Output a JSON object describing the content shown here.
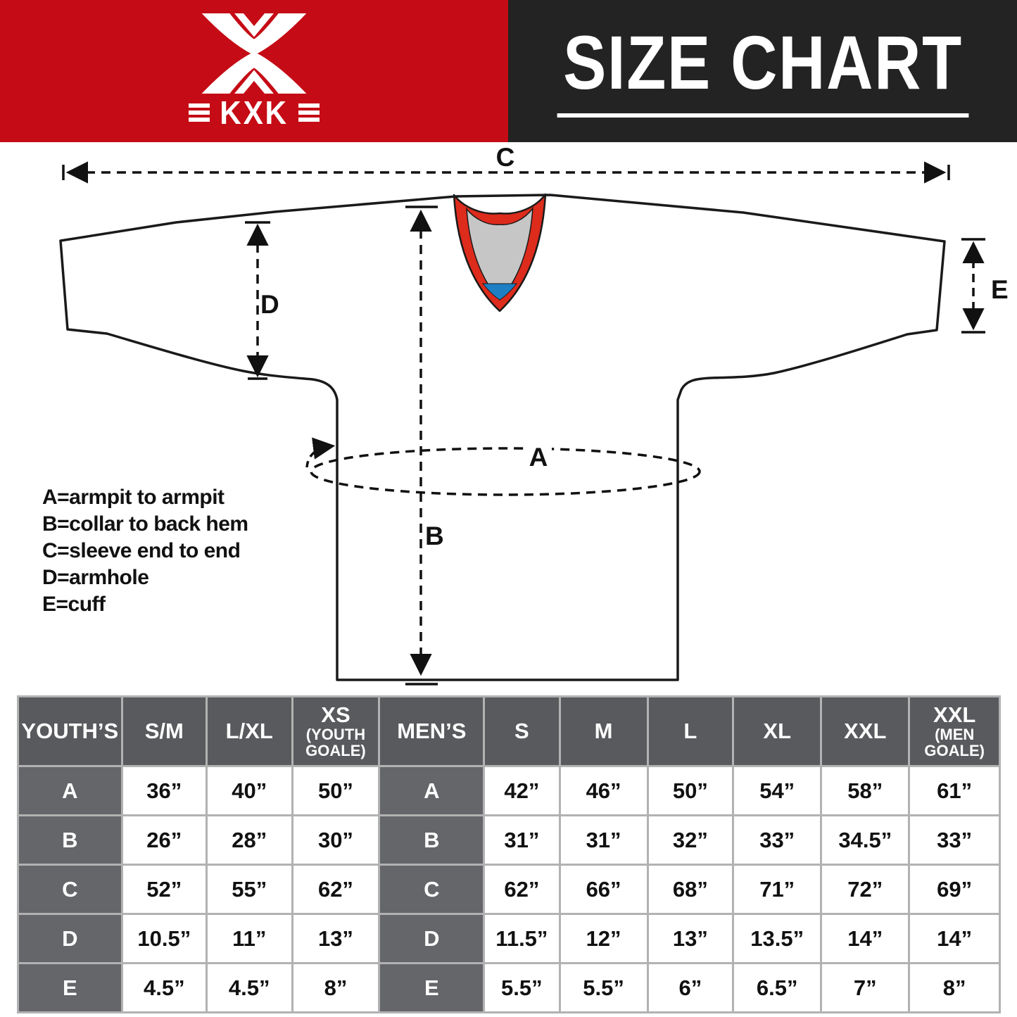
{
  "header": {
    "brand": "KXK",
    "title": "SIZE CHART"
  },
  "theme": {
    "brand_red": "#c50b15",
    "header_dark": "#232323",
    "collar_red": "#dd2b1c",
    "collar_gray": "#c6c6c6",
    "collar_blue": "#1e7fc2",
    "table_head": "#595a5d",
    "table_label": "#65666a",
    "grid_line": "#b2b2b2",
    "ink": "#111111"
  },
  "diagram": {
    "labels": {
      "a": "A",
      "b": "B",
      "c": "C",
      "d": "D",
      "e": "E"
    },
    "legend": [
      "A=armpit to armpit",
      "B=collar to back hem",
      "C=sleeve end to end",
      "D=armhole",
      "E=cuff"
    ]
  },
  "size_table": {
    "columns": [
      {
        "label": "YOUTH’S",
        "kind": "group"
      },
      {
        "label": "S/M"
      },
      {
        "label": "L/XL"
      },
      {
        "label": "XS",
        "sub": "(YOUTH GOALE)"
      },
      {
        "label": "MEN’S",
        "kind": "group"
      },
      {
        "label": "S"
      },
      {
        "label": "M"
      },
      {
        "label": "L"
      },
      {
        "label": "XL"
      },
      {
        "label": "XXL"
      },
      {
        "label": "XXL",
        "sub": "(MEN GOALE)"
      }
    ],
    "rows": [
      {
        "label": "A",
        "youth": [
          "36”",
          "40”",
          "50”"
        ],
        "men": [
          "42”",
          "46”",
          "50”",
          "54”",
          "58”",
          "61”"
        ]
      },
      {
        "label": "B",
        "youth": [
          "26”",
          "28”",
          "30”"
        ],
        "men": [
          "31”",
          "31”",
          "32”",
          "33”",
          "34.5”",
          "33”"
        ]
      },
      {
        "label": "C",
        "youth": [
          "52”",
          "55”",
          "62”"
        ],
        "men": [
          "62”",
          "66”",
          "68”",
          "71”",
          "72”",
          "69”"
        ]
      },
      {
        "label": "D",
        "youth": [
          "10.5”",
          "11”",
          "13”"
        ],
        "men": [
          "11.5”",
          "12”",
          "13”",
          "13.5”",
          "14”",
          "14”"
        ]
      },
      {
        "label": "E",
        "youth": [
          "4.5”",
          "4.5”",
          "8”"
        ],
        "men": [
          "5.5”",
          "5.5”",
          "6”",
          "6.5”",
          "7”",
          "8”"
        ]
      }
    ]
  }
}
